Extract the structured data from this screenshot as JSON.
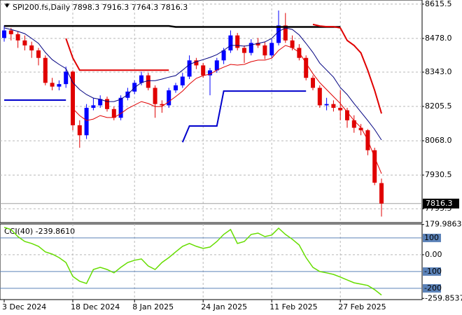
{
  "chart_data": [
    {
      "type": "candlestick",
      "title": "SPI200.fs,Daily  7898.3 7916.3 7764.3 7816.3",
      "categories": [
        "3 Dec 2024",
        null,
        null,
        null,
        null,
        null,
        null,
        null,
        null,
        null,
        "18 Dec 2024",
        null,
        null,
        null,
        null,
        null,
        null,
        null,
        null,
        "8 Jan 2025",
        null,
        null,
        null,
        null,
        null,
        null,
        null,
        null,
        null,
        "24 Jan 2025",
        null,
        null,
        null,
        null,
        null,
        null,
        null,
        null,
        null,
        "11 Feb 2025",
        null,
        null,
        null,
        null,
        null,
        null,
        null,
        null,
        null,
        "27 Feb 2025",
        null,
        null,
        null,
        null,
        null,
        null
      ],
      "candles": [
        [
          8480,
          8530,
          8465,
          8510
        ],
        [
          8510,
          8520,
          8470,
          8495
        ],
        [
          8495,
          8505,
          8440,
          8470
        ],
        [
          8470,
          8490,
          8430,
          8450
        ],
        [
          8450,
          8465,
          8400,
          8430
        ],
        [
          8430,
          8440,
          8370,
          8400
        ],
        [
          8400,
          8410,
          8290,
          8300
        ],
        [
          8300,
          8320,
          8270,
          8285
        ],
        [
          8285,
          8310,
          8270,
          8295
        ],
        [
          8295,
          8365,
          8280,
          8345
        ],
        [
          8345,
          8350,
          8110,
          8130
        ],
        [
          8130,
          8150,
          8040,
          8090
        ],
        [
          8090,
          8215,
          8075,
          8200
        ],
        [
          8200,
          8240,
          8190,
          8210
        ],
        [
          8210,
          8250,
          8200,
          8235
        ],
        [
          8235,
          8245,
          8185,
          8195
        ],
        [
          8195,
          8205,
          8150,
          8160
        ],
        [
          8160,
          8250,
          8150,
          8240
        ],
        [
          8240,
          8280,
          8230,
          8265
        ],
        [
          8265,
          8310,
          8255,
          8300
        ],
        [
          8300,
          8345,
          8290,
          8330
        ],
        [
          8330,
          8340,
          8270,
          8280
        ],
        [
          8280,
          8290,
          8160,
          8215
        ],
        [
          8215,
          8230,
          8180,
          8210
        ],
        [
          8210,
          8280,
          8200,
          8270
        ],
        [
          8270,
          8300,
          8260,
          8290
        ],
        [
          8290,
          8340,
          8280,
          8325
        ],
        [
          8325,
          8410,
          8315,
          8390
        ],
        [
          8390,
          8400,
          8355,
          8370
        ],
        [
          8370,
          8380,
          8320,
          8330
        ],
        [
          8330,
          8360,
          8250,
          8350
        ],
        [
          8350,
          8400,
          8340,
          8390
        ],
        [
          8390,
          8440,
          8375,
          8430
        ],
        [
          8430,
          8510,
          8420,
          8490
        ],
        [
          8490,
          8500,
          8430,
          8440
        ],
        [
          8440,
          8450,
          8380,
          8420
        ],
        [
          8420,
          8475,
          8410,
          8460
        ],
        [
          8460,
          8480,
          8440,
          8450
        ],
        [
          8450,
          8465,
          8395,
          8410
        ],
        [
          8410,
          8475,
          8400,
          8460
        ],
        [
          8460,
          8590,
          8450,
          8530
        ],
        [
          8530,
          8580,
          8460,
          8470
        ],
        [
          8470,
          8490,
          8430,
          8440
        ],
        [
          8440,
          8455,
          8390,
          8400
        ],
        [
          8400,
          8410,
          8310,
          8320
        ],
        [
          8320,
          8330,
          8270,
          8280
        ],
        [
          8280,
          8290,
          8200,
          8210
        ],
        [
          8210,
          8240,
          8190,
          8215
        ],
        [
          8215,
          8230,
          8185,
          8200
        ],
        [
          8200,
          8270,
          8150,
          8190
        ],
        [
          8190,
          8200,
          8120,
          8150
        ],
        [
          8150,
          8170,
          8100,
          8120
        ],
        [
          8120,
          8135,
          8090,
          8110
        ],
        [
          8110,
          8115,
          8010,
          8030
        ],
        [
          8030,
          8040,
          7890,
          7900
        ],
        [
          7898.3,
          7916.3,
          7764.3,
          7816.3
        ]
      ],
      "up_color": "#0000ff",
      "down_color": "#e00000",
      "series": [
        {
          "color": "#000000",
          "width": 2.5,
          "values": [
            8528,
            8528,
            8528,
            8528,
            8528,
            8528,
            8528,
            8528,
            8528,
            8528,
            8528,
            8528,
            8528,
            8528,
            8528,
            8528,
            8528,
            8528,
            8528,
            8528,
            8528,
            8528,
            8528,
            8528,
            8528,
            8524,
            8524,
            8524,
            8524,
            8524,
            8524,
            8524,
            8524,
            8524,
            8524,
            8524,
            8524,
            8524,
            8524,
            8524,
            8524,
            8524,
            8524,
            8524,
            8524,
            8524,
            8524,
            8524,
            8524,
            8524,
            null,
            null,
            null,
            null,
            null,
            null
          ]
        },
        {
          "color": "#000080",
          "width": 1,
          "values": [
            8520,
            8514,
            8506,
            8497,
            8478,
            8458,
            8422,
            8393,
            8374,
            8357,
            8301,
            8273,
            8253,
            8239,
            8234,
            8225,
            8225,
            8234,
            8253,
            8281,
            8301,
            8309,
            8309,
            8315,
            8323,
            8329,
            8351,
            8374,
            8385,
            8393,
            8402,
            8413,
            8430,
            8450,
            8450,
            8447,
            8452,
            8458,
            8464,
            8478,
            8506,
            8520,
            8514,
            8492,
            8458,
            8422,
            8379,
            8351,
            8323,
            8281,
            8253,
            8217,
            8183,
            8149,
            8113,
            8071
          ]
        },
        {
          "color": "#e00000",
          "width": 1,
          "values": [
            null,
            null,
            null,
            null,
            null,
            null,
            null,
            null,
            null,
            null,
            8197,
            8169,
            8149,
            8155,
            8169,
            8161,
            8161,
            8177,
            8197,
            8211,
            8225,
            8217,
            8205,
            8205,
            8225,
            8245,
            8267,
            8295,
            8318,
            8329,
            8335,
            8351,
            8363,
            8374,
            8371,
            8374,
            8385,
            8391,
            8391,
            8399,
            8430,
            8450,
            8441,
            8422,
            8379,
            8337,
            8301,
            8273,
            8245,
            8217,
            8183,
            8149,
            8121,
            8071,
            8001,
            7936
          ]
        },
        {
          "color": "#e00000",
          "width": 2,
          "values": [
            null,
            null,
            null,
            null,
            null,
            null,
            null,
            null,
            null,
            8478,
            8400,
            8351,
            8351,
            8351,
            8351,
            8351,
            8351,
            8351,
            8351,
            8351,
            8351,
            8351,
            8351,
            8351,
            8351,
            null,
            null,
            null,
            null,
            null,
            null,
            null,
            null,
            null,
            null,
            null,
            null,
            null,
            null,
            null,
            null,
            null,
            null,
            null,
            null,
            8534,
            8528,
            8525,
            8525,
            8520,
            8470,
            8450,
            8420,
            8350,
            8270,
            8177
          ]
        },
        {
          "color": "#0000cc",
          "width": 2,
          "values": [
            8231,
            8231,
            8231,
            8231,
            8231,
            8231,
            8231,
            8231,
            8231,
            8231,
            null,
            null,
            null,
            null,
            null,
            null,
            null,
            null,
            null,
            null,
            null,
            null,
            null,
            null,
            null,
            null,
            8062,
            8127,
            8127,
            8127,
            8127,
            8127,
            8267,
            8267,
            8267,
            8267,
            8267,
            8267,
            8267,
            8267,
            8267,
            8267,
            8267,
            8267,
            8267,
            null,
            null,
            null,
            null,
            null,
            null,
            null,
            null,
            null,
            null,
            null
          ]
        }
      ],
      "ylim": [
        7740,
        8632
      ],
      "yticks": [
        8615.5,
        {
          "value": 8478,
          "label": "8478.0"
        },
        {
          "value": 8343,
          "label": "8343.0"
        },
        8205.5,
        {
          "value": 8068,
          "label": "8068.0"
        },
        7930.5,
        7795.5
      ],
      "last_price": 7816.3,
      "grid": true
    },
    {
      "type": "line",
      "title": "CCI(40) -239.8610",
      "series": [
        {
          "color": "#66dd00",
          "width": 1.5,
          "values": [
            163,
            150,
            108,
            79,
            67,
            50,
            17,
            4,
            -17,
            -46,
            -129,
            -158,
            -171,
            -88,
            -75,
            -88,
            -108,
            -75,
            -46,
            -33,
            -25,
            -67,
            -88,
            -46,
            -17,
            17,
            50,
            67,
            50,
            38,
            46,
            79,
            121,
            150,
            67,
            79,
            121,
            129,
            108,
            117,
            158,
            121,
            92,
            58,
            -17,
            -75,
            -100,
            -108,
            -117,
            -133,
            -150,
            -167,
            -175,
            -183,
            -208,
            -239.861
          ]
        }
      ],
      "ylim": [
        -267,
        183
      ],
      "yticks": [
        179.9863,
        {
          "value": 0,
          "label": "0.00"
        },
        -259.8537
      ],
      "levels": [
        100,
        -100,
        -200
      ],
      "level_color": "#5b82b8",
      "grid": true
    }
  ]
}
